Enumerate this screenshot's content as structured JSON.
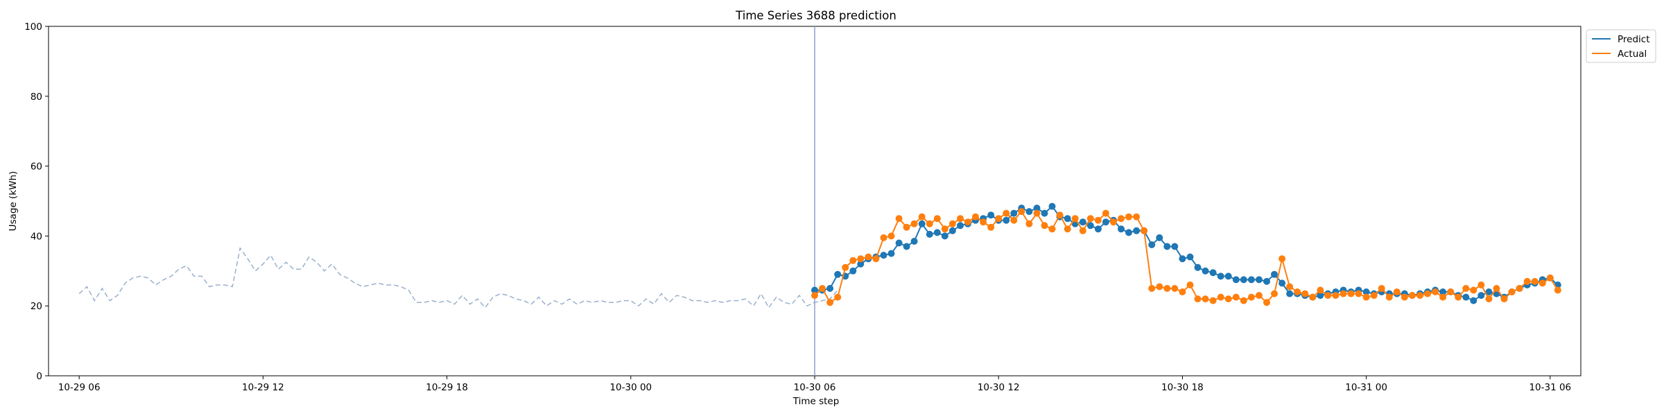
{
  "chart_data": {
    "type": "line",
    "title": "Time Series 3688 prediction",
    "xlabel": "Time step",
    "ylabel": "Usage (kWh)",
    "ylim": [
      0,
      100
    ],
    "yticks": [
      0,
      20,
      40,
      60,
      80,
      100
    ],
    "x_start": "10-29 05:00",
    "x_end": "10-31 07:00",
    "x_ticks": [
      {
        "time": "10-29 06:00",
        "label": "10-29 06"
      },
      {
        "time": "10-29 12:00",
        "label": "10-29 12"
      },
      {
        "time": "10-29 18:00",
        "label": "10-29 18"
      },
      {
        "time": "10-30 00:00",
        "label": "10-30 00"
      },
      {
        "time": "10-30 06:00",
        "label": "10-30 06"
      },
      {
        "time": "10-30 12:00",
        "label": "10-30 12"
      },
      {
        "time": "10-30 18:00",
        "label": "10-30 18"
      },
      {
        "time": "10-31 00:00",
        "label": "10-31 00"
      },
      {
        "time": "10-31 06:00",
        "label": "10-31 06"
      }
    ],
    "grid": false,
    "legend_position": "outside-top-right",
    "forecast_start": "10-30 06:00",
    "history": {
      "color": "#9ab0cc",
      "style": "dashed",
      "start": "10-29 06:00",
      "interval_minutes": 15,
      "values": [
        23.5,
        25.5,
        21.5,
        25.0,
        21.5,
        23.0,
        26.5,
        28.0,
        28.5,
        28.0,
        26.0,
        27.5,
        28.5,
        30.5,
        31.5,
        28.5,
        28.5,
        25.5,
        26.0,
        26.0,
        25.5,
        36.5,
        33.5,
        30.0,
        32.0,
        34.5,
        30.5,
        32.5,
        30.5,
        30.5,
        34.0,
        32.5,
        30.0,
        32.0,
        29.0,
        28.0,
        26.5,
        25.5,
        26.0,
        26.5,
        26.0,
        26.0,
        25.5,
        24.5,
        21.0,
        21.0,
        21.5,
        21.0,
        21.5,
        20.5,
        23.0,
        20.5,
        22.0,
        19.5,
        22.5,
        23.5,
        23.0,
        22.0,
        21.5,
        20.5,
        22.5,
        20.0,
        21.5,
        20.5,
        22.0,
        20.5,
        21.5,
        21.0,
        21.5,
        21.0,
        21.0,
        21.5,
        21.5,
        20.0,
        22.0,
        20.5,
        23.5,
        21.0,
        23.0,
        22.5,
        21.5,
        21.5,
        21.0,
        21.5,
        21.0,
        21.5,
        21.5,
        22.0,
        20.0,
        23.5,
        19.5,
        22.5,
        21.0,
        20.5,
        23.0,
        20.0,
        21.0,
        21.5,
        22.0,
        24.5
      ]
    },
    "series": [
      {
        "name": "Predict",
        "color": "#1f77b4",
        "start": "10-30 06:00",
        "interval_minutes": 15,
        "values": [
          24.5,
          24.5,
          25.0,
          29.0,
          28.5,
          30.0,
          32.0,
          33.5,
          34.0,
          34.5,
          35.0,
          38.0,
          37.0,
          38.5,
          43.5,
          40.5,
          41.0,
          40.0,
          41.5,
          43.0,
          43.5,
          44.5,
          45.0,
          46.0,
          44.5,
          44.5,
          46.5,
          48.0,
          47.0,
          48.0,
          46.5,
          48.5,
          45.5,
          45.0,
          43.5,
          44.0,
          43.0,
          42.0,
          44.0,
          44.5,
          42.0,
          41.0,
          41.5,
          41.5,
          37.5,
          39.5,
          37.0,
          37.0,
          33.5,
          34.0,
          31.0,
          30.0,
          29.5,
          28.5,
          28.5,
          27.5,
          27.5,
          27.5,
          27.5,
          27.0,
          29.0,
          26.5,
          23.5,
          23.5,
          23.0,
          22.5,
          23.0,
          23.5,
          24.0,
          24.5,
          24.0,
          24.5,
          24.0,
          23.5,
          24.0,
          23.5,
          23.5,
          23.5,
          23.0,
          23.5,
          24.0,
          24.5,
          24.0,
          24.0,
          23.0,
          22.5,
          21.5,
          23.0,
          24.0,
          23.5,
          22.5,
          24.0,
          25.0,
          26.0,
          26.5,
          27.5,
          28.0,
          26.0
        ]
      },
      {
        "name": "Actual",
        "color": "#ff7f0e",
        "start": "10-30 06:00",
        "interval_minutes": 15,
        "values": [
          23.0,
          25.0,
          21.0,
          22.5,
          31.0,
          33.0,
          33.5,
          34.0,
          33.5,
          39.5,
          40.0,
          45.0,
          42.5,
          43.5,
          45.5,
          43.5,
          45.0,
          42.0,
          43.5,
          45.0,
          44.0,
          45.5,
          44.0,
          42.5,
          45.0,
          46.5,
          44.5,
          47.0,
          43.5,
          46.5,
          43.0,
          42.0,
          46.0,
          42.0,
          45.0,
          41.5,
          45.0,
          44.5,
          46.5,
          44.0,
          45.0,
          45.5,
          45.5,
          41.5,
          25.0,
          25.5,
          25.0,
          25.0,
          24.0,
          26.0,
          22.0,
          22.0,
          21.5,
          22.5,
          22.0,
          22.5,
          21.5,
          22.5,
          23.0,
          21.0,
          23.5,
          33.5,
          25.5,
          24.0,
          23.5,
          22.5,
          24.5,
          23.0,
          23.0,
          23.5,
          23.5,
          23.5,
          22.5,
          23.0,
          25.0,
          22.5,
          24.0,
          22.5,
          23.0,
          23.0,
          23.5,
          24.0,
          22.5,
          24.0,
          22.5,
          25.0,
          24.5,
          26.0,
          22.0,
          25.0,
          22.0,
          24.0,
          25.0,
          27.0,
          27.0,
          26.5,
          28.0,
          24.5
        ]
      }
    ]
  }
}
